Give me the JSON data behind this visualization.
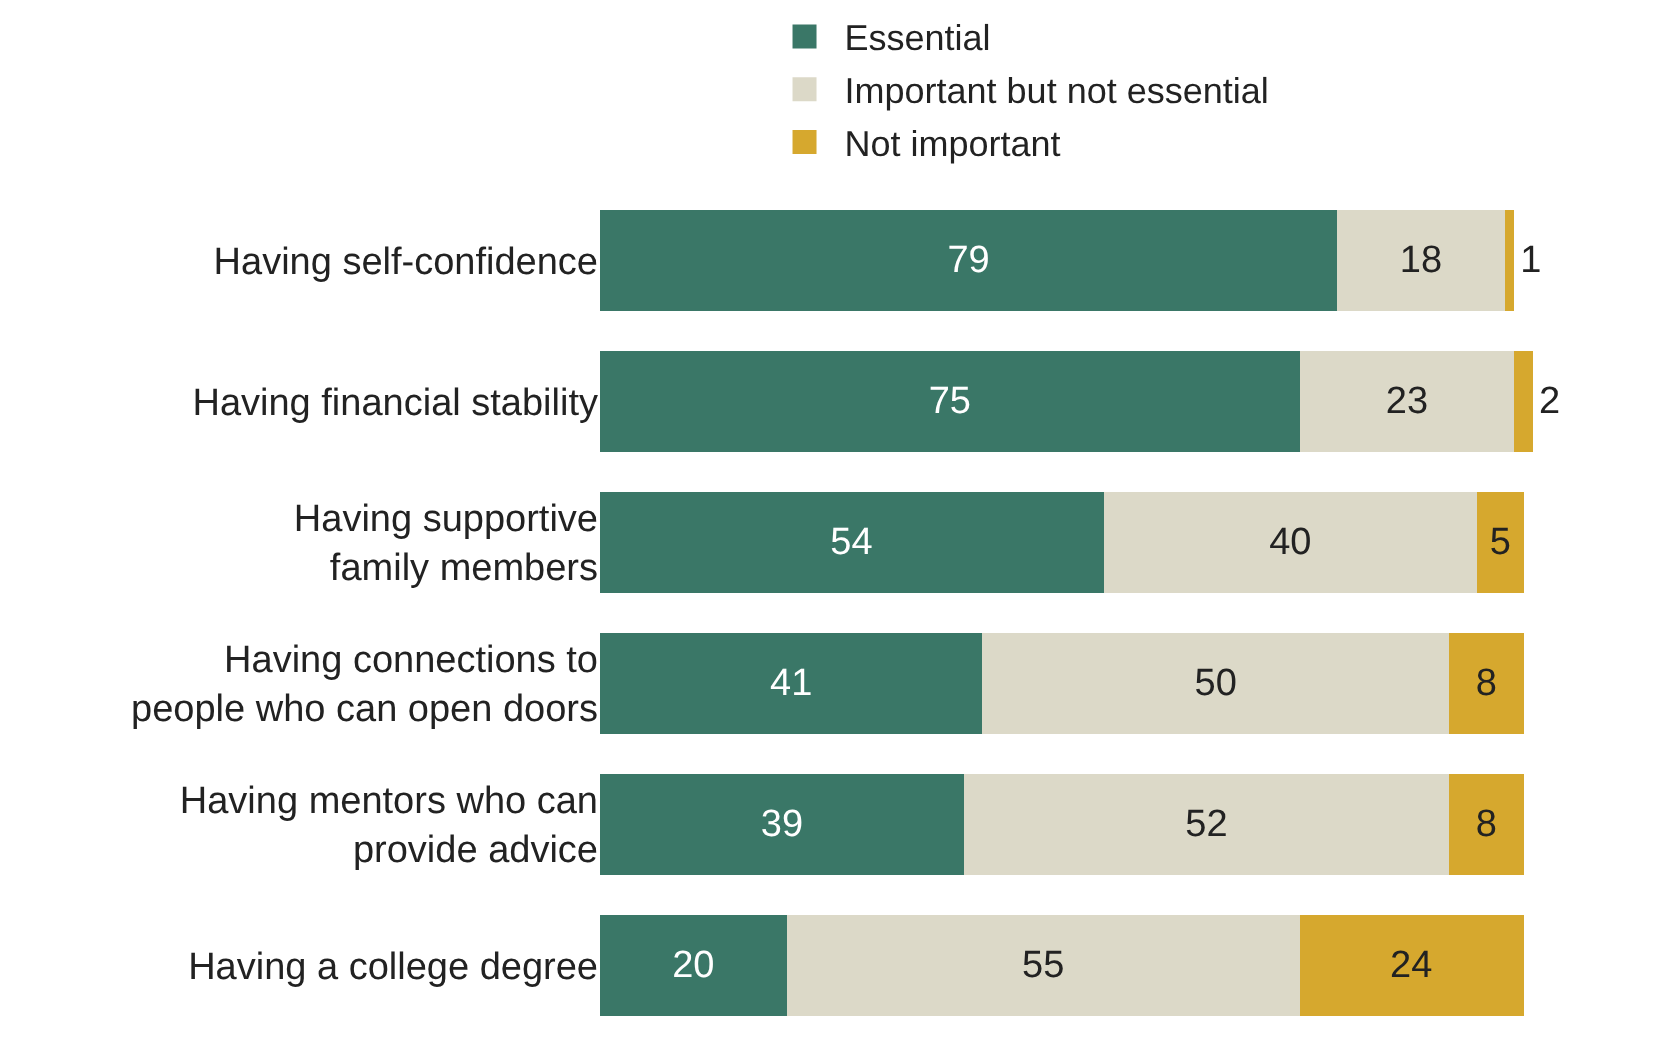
{
  "chart_data": {
    "type": "bar",
    "orientation": "horizontal",
    "stacked": true,
    "data_labels": true,
    "legend": "top",
    "tick_labels": "y",
    "categories": [
      "Having self-confidence",
      "Having financial stability",
      "Having supportive\nfamily members",
      "Having connections to\npeople who can open doors",
      "Having mentors who can\nprovide advice",
      "Having a college degree"
    ],
    "series": [
      {
        "name": "Essential",
        "color": "#3a7767",
        "values": [
          79,
          75,
          54,
          41,
          39,
          20
        ]
      },
      {
        "name": "Important but not essential",
        "color": "#dcd9c8",
        "values": [
          18,
          23,
          40,
          50,
          52,
          55
        ]
      },
      {
        "name": "Not important",
        "color": "#d6a82e",
        "values": [
          1,
          2,
          5,
          8,
          8,
          24
        ]
      }
    ]
  }
}
